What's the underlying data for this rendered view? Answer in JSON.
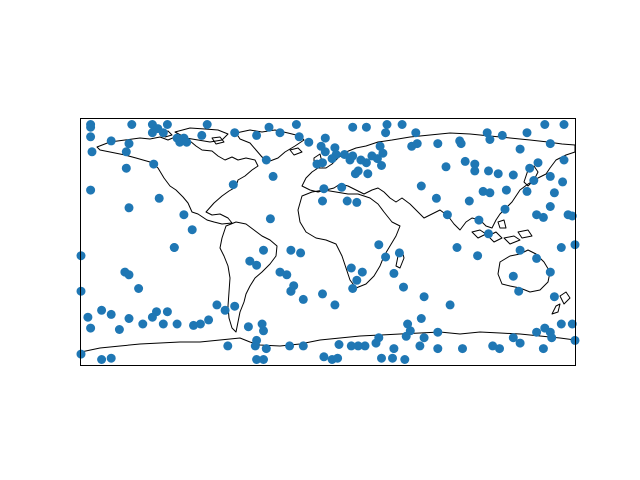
{
  "map": {
    "projection": "plate-carree",
    "extent": {
      "lon": [
        -180,
        180
      ],
      "lat": [
        -90,
        90
      ]
    },
    "frame_color": "#000000",
    "coastline_color": "#000000",
    "marker_color": "#1f77b4",
    "marker_shape": "circle"
  },
  "chart_data": {
    "type": "scatter",
    "title": "",
    "xlabel": "",
    "ylabel": "",
    "xlim": [
      -180,
      180
    ],
    "ylim": [
      -90,
      90
    ],
    "grid": false,
    "points": [
      {
        "lon": -173,
        "lat": 86
      },
      {
        "lon": -173,
        "lat": 84
      },
      {
        "lon": -143,
        "lat": 86
      },
      {
        "lon": -128,
        "lat": 86
      },
      {
        "lon": -124,
        "lat": 83
      },
      {
        "lon": -117,
        "lat": 86
      },
      {
        "lon": -88,
        "lat": 86
      },
      {
        "lon": -43,
        "lat": 84
      },
      {
        "lon": -23,
        "lat": 86
      },
      {
        "lon": 18,
        "lat": 84
      },
      {
        "lon": 28,
        "lat": 84
      },
      {
        "lon": 43,
        "lat": 86
      },
      {
        "lon": 54,
        "lat": 86
      },
      {
        "lon": 158,
        "lat": 86
      },
      {
        "lon": 172,
        "lat": 86
      },
      {
        "lon": -128,
        "lat": 80
      },
      {
        "lon": -120,
        "lat": 80
      },
      {
        "lon": -110,
        "lat": 76
      },
      {
        "lon": -105,
        "lat": 76
      },
      {
        "lon": -92,
        "lat": 78
      },
      {
        "lon": -68,
        "lat": 80
      },
      {
        "lon": -52,
        "lat": 78
      },
      {
        "lon": -35,
        "lat": 80
      },
      {
        "lon": -21,
        "lat": 77
      },
      {
        "lon": -2,
        "lat": 76
      },
      {
        "lon": 42,
        "lat": 80
      },
      {
        "lon": 64,
        "lat": 80
      },
      {
        "lon": 116,
        "lat": 80
      },
      {
        "lon": 127,
        "lat": 78
      },
      {
        "lon": 145,
        "lat": 80
      },
      {
        "lon": -173,
        "lat": 77
      },
      {
        "lon": -172,
        "lat": 66
      },
      {
        "lon": -158,
        "lat": 74
      },
      {
        "lon": -145,
        "lat": 72
      },
      {
        "lon": -108,
        "lat": 73
      },
      {
        "lon": -103,
        "lat": 73
      },
      {
        "lon": -14,
        "lat": 73
      },
      {
        "lon": -5,
        "lat": 70
      },
      {
        "lon": -2,
        "lat": 66
      },
      {
        "lon": 5,
        "lat": 69
      },
      {
        "lon": 6,
        "lat": 64
      },
      {
        "lon": 12,
        "lat": 64
      },
      {
        "lon": 16,
        "lat": 60
      },
      {
        "lon": 38,
        "lat": 70
      },
      {
        "lon": 61,
        "lat": 70
      },
      {
        "lon": 65,
        "lat": 72
      },
      {
        "lon": 80,
        "lat": 72
      },
      {
        "lon": 96,
        "lat": 74
      },
      {
        "lon": 97,
        "lat": 72
      },
      {
        "lon": 118,
        "lat": 75
      },
      {
        "lon": 140,
        "lat": 68
      },
      {
        "lon": 162,
        "lat": 72
      },
      {
        "lon": -147,
        "lat": 66
      },
      {
        "lon": -45,
        "lat": 60
      },
      {
        "lon": -8,
        "lat": 57
      },
      {
        "lon": -4,
        "lat": 58
      },
      {
        "lon": 3,
        "lat": 61
      },
      {
        "lon": 20,
        "lat": 50
      },
      {
        "lon": 22,
        "lat": 52
      },
      {
        "lon": 32,
        "lat": 63
      },
      {
        "lon": 40,
        "lat": 65
      },
      {
        "lon": 18,
        "lat": 63
      },
      {
        "lon": 28,
        "lat": 58
      },
      {
        "lon": 24,
        "lat": 60
      },
      {
        "lon": 36,
        "lat": 61
      },
      {
        "lon": 39,
        "lat": 56
      },
      {
        "lon": 86,
        "lat": 55
      },
      {
        "lon": 100,
        "lat": 59
      },
      {
        "lon": 107,
        "lat": 57
      },
      {
        "lon": 107,
        "lat": 52
      },
      {
        "lon": 117,
        "lat": 52
      },
      {
        "lon": -147,
        "lat": 54
      },
      {
        "lon": -127,
        "lat": 57
      },
      {
        "lon": -40,
        "lat": 48
      },
      {
        "lon": -3,
        "lat": 39
      },
      {
        "lon": -4,
        "lat": 30
      },
      {
        "lon": 10,
        "lat": 40
      },
      {
        "lon": 14,
        "lat": 30
      },
      {
        "lon": 21,
        "lat": 29
      },
      {
        "lon": 29,
        "lat": 50
      },
      {
        "lon": 124,
        "lat": 50
      },
      {
        "lon": 135,
        "lat": 49
      },
      {
        "lon": 147,
        "lat": 54
      },
      {
        "lon": 153,
        "lat": 58
      },
      {
        "lon": 172,
        "lat": 60
      },
      {
        "lon": 171,
        "lat": 44
      },
      {
        "lon": 165,
        "lat": 36
      },
      {
        "lon": -173,
        "lat": 38
      },
      {
        "lon": -123,
        "lat": 32
      },
      {
        "lon": -145,
        "lat": 25
      },
      {
        "lon": -105,
        "lat": 20
      },
      {
        "lon": -99,
        "lat": 9
      },
      {
        "lon": -69,
        "lat": 42
      },
      {
        "lon": -42,
        "lat": 17
      },
      {
        "lon": -27,
        "lat": -6
      },
      {
        "lon": -20,
        "lat": -8
      },
      {
        "lon": -27,
        "lat": -36
      },
      {
        "lon": -30,
        "lat": -24
      },
      {
        "lon": -27,
        "lat": -36
      },
      {
        "lon": 42,
        "lat": -11
      },
      {
        "lon": 37,
        "lat": -2
      },
      {
        "lon": 52,
        "lat": -8
      },
      {
        "lon": 48,
        "lat": -23
      },
      {
        "lon": 55,
        "lat": -33
      },
      {
        "lon": 70,
        "lat": -40
      },
      {
        "lon": 89,
        "lat": -46
      },
      {
        "lon": 135,
        "lat": -25
      },
      {
        "lon": 139,
        "lat": -36
      },
      {
        "lon": 109,
        "lat": -10
      },
      {
        "lon": 94,
        "lat": -4
      },
      {
        "lon": 152,
        "lat": -12
      },
      {
        "lon": 162,
        "lat": -22
      },
      {
        "lon": 165,
        "lat": -40
      },
      {
        "lon": 180,
        "lat": -2
      },
      {
        "lon": -148,
        "lat": -22
      },
      {
        "lon": -145,
        "lat": -24
      },
      {
        "lon": -138,
        "lat": -34
      },
      {
        "lon": -117,
        "lat": -51
      },
      {
        "lon": -125,
        "lat": -51
      },
      {
        "lon": -145,
        "lat": -56
      },
      {
        "lon": -175,
        "lat": -55
      },
      {
        "lon": -180,
        "lat": -36
      },
      {
        "lon": -180,
        "lat": -10
      },
      {
        "lon": -112,
        "lat": -4
      },
      {
        "lon": -112,
        "lat": -4
      },
      {
        "lon": -81,
        "lat": -46
      },
      {
        "lon": -75,
        "lat": -50
      },
      {
        "lon": -68,
        "lat": -47
      },
      {
        "lon": -57,
        "lat": -14
      },
      {
        "lon": -52,
        "lat": -17
      },
      {
        "lon": -47,
        "lat": -6
      },
      {
        "lon": -35,
        "lat": -22
      },
      {
        "lon": -4,
        "lat": -38
      },
      {
        "lon": -18,
        "lat": -42
      },
      {
        "lon": -25,
        "lat": -32
      },
      {
        "lon": 5,
        "lat": -46
      },
      {
        "lon": 18,
        "lat": -34
      },
      {
        "lon": 25,
        "lat": -22
      },
      {
        "lon": 17,
        "lat": -19
      },
      {
        "lon": 21,
        "lat": -28
      },
      {
        "lon": -128,
        "lat": -55
      },
      {
        "lon": -120,
        "lat": -60
      },
      {
        "lon": -135,
        "lat": -60
      },
      {
        "lon": -158,
        "lat": -53
      },
      {
        "lon": -165,
        "lat": -50
      },
      {
        "lon": -110,
        "lat": -60
      },
      {
        "lon": -98,
        "lat": -61
      },
      {
        "lon": -87,
        "lat": -57
      },
      {
        "lon": -93,
        "lat": -60
      },
      {
        "lon": -58,
        "lat": -62
      },
      {
        "lon": -47,
        "lat": -65
      },
      {
        "lon": -48,
        "lat": -60
      },
      {
        "lon": -52,
        "lat": -72
      },
      {
        "lon": -73,
        "lat": -76
      },
      {
        "lon": -53,
        "lat": -76
      },
      {
        "lon": -28,
        "lat": -76
      },
      {
        "lon": -18,
        "lat": -76
      },
      {
        "lon": 8,
        "lat": -75
      },
      {
        "lon": 17,
        "lat": -76
      },
      {
        "lon": 27,
        "lat": -76
      },
      {
        "lon": 22,
        "lat": -76
      },
      {
        "lon": 35,
        "lat": -74
      },
      {
        "lon": 37,
        "lat": -70
      },
      {
        "lon": 57,
        "lat": -69
      },
      {
        "lon": 70,
        "lat": -70
      },
      {
        "lon": 58,
        "lat": -60
      },
      {
        "lon": 60,
        "lat": -65
      },
      {
        "lon": 80,
        "lat": -66
      },
      {
        "lon": 68,
        "lat": -56
      },
      {
        "lon": -180,
        "lat": -82
      },
      {
        "lon": -173,
        "lat": -63
      },
      {
        "lon": -165,
        "lat": -86
      },
      {
        "lon": -158,
        "lat": -85
      },
      {
        "lon": -152,
        "lat": -64
      },
      {
        "lon": -52,
        "lat": -86
      },
      {
        "lon": -47,
        "lat": -86
      },
      {
        "lon": -45,
        "lat": -78
      },
      {
        "lon": -3,
        "lat": -84
      },
      {
        "lon": 3,
        "lat": -86
      },
      {
        "lon": 7,
        "lat": -85
      },
      {
        "lon": 39,
        "lat": -85
      },
      {
        "lon": 47,
        "lat": -85
      },
      {
        "lon": 48,
        "lat": -78
      },
      {
        "lon": 80,
        "lat": -78
      },
      {
        "lon": 56,
        "lat": -86
      },
      {
        "lon": 67,
        "lat": -76
      },
      {
        "lon": 98,
        "lat": -78
      },
      {
        "lon": 125,
        "lat": -78
      },
      {
        "lon": 135,
        "lat": -70
      },
      {
        "lon": 152,
        "lat": -66
      },
      {
        "lon": 158,
        "lat": -63
      },
      {
        "lon": 162,
        "lat": -66
      },
      {
        "lon": 163,
        "lat": -70
      },
      {
        "lon": 170,
        "lat": -60
      },
      {
        "lon": 178,
        "lat": -60
      },
      {
        "lon": 180,
        "lat": -72
      },
      {
        "lon": 140,
        "lat": -74
      },
      {
        "lon": 157,
        "lat": -78
      },
      {
        "lon": 120,
        "lat": -76
      },
      {
        "lon": 140,
        "lat": -6
      },
      {
        "lon": 152,
        "lat": 20
      },
      {
        "lon": 157,
        "lat": 18
      },
      {
        "lon": 162,
        "lat": 26
      },
      {
        "lon": 175,
        "lat": 20
      },
      {
        "lon": 178,
        "lat": 19
      },
      {
        "lon": 170,
        "lat": -4
      },
      {
        "lon": 110,
        "lat": 16
      },
      {
        "lon": 129,
        "lat": 24
      },
      {
        "lon": 130,
        "lat": 38
      },
      {
        "lon": 145,
        "lat": 37
      },
      {
        "lon": 150,
        "lat": 45
      },
      {
        "lon": 162,
        "lat": 48
      },
      {
        "lon": 113,
        "lat": 37
      },
      {
        "lon": 118,
        "lat": 36
      },
      {
        "lon": 103,
        "lat": 30
      },
      {
        "lon": 87,
        "lat": 20
      },
      {
        "lon": 79,
        "lat": 32
      },
      {
        "lon": 68,
        "lat": 41
      },
      {
        "lon": 117,
        "lat": 6
      }
    ]
  }
}
